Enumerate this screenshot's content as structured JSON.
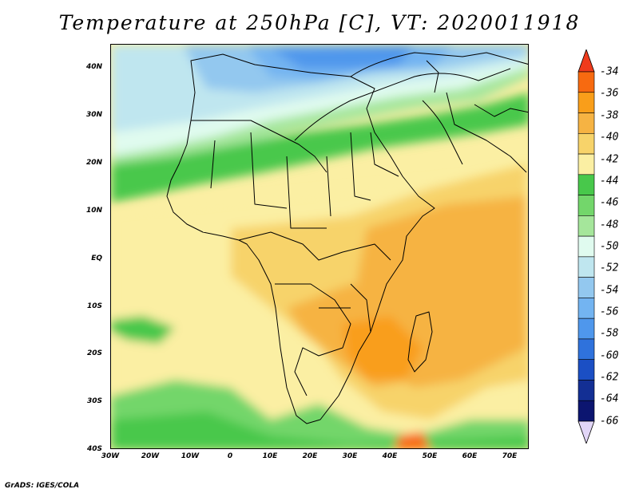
{
  "title": "Temperature at 250hPa [C], VT: 2020011918",
  "credit": "GrADS: IGES/COLA",
  "map": {
    "lon_range": [
      -30,
      75
    ],
    "lat_range": [
      -40,
      45
    ],
    "lat_ticks": [
      "40N",
      "30N",
      "20N",
      "10N",
      "EQ",
      "10S",
      "20S",
      "30S",
      "40S"
    ],
    "lon_ticks": [
      "30W",
      "20W",
      "10W",
      "0",
      "10E",
      "20E",
      "30E",
      "40E",
      "50E",
      "60E",
      "70E"
    ]
  },
  "colorbar": {
    "labels": [
      "-34",
      "-36",
      "-38",
      "-40",
      "-42",
      "-44",
      "-46",
      "-48",
      "-50",
      "-52",
      "-54",
      "-56",
      "-58",
      "-60",
      "-62",
      "-64",
      "-66"
    ],
    "colors": [
      "#ef3b1c",
      "#f76a10",
      "#f99e1a",
      "#f6b343",
      "#f7d36a",
      "#fbefa3",
      "#48c84b",
      "#73d66b",
      "#a5e69b",
      "#e0fbef",
      "#bfe6ef",
      "#93c8ef",
      "#73b4f1",
      "#4f97ec",
      "#2f72dc",
      "#1b4fc4",
      "#132f94",
      "#0c1570",
      "#e2d6f7"
    ]
  }
}
